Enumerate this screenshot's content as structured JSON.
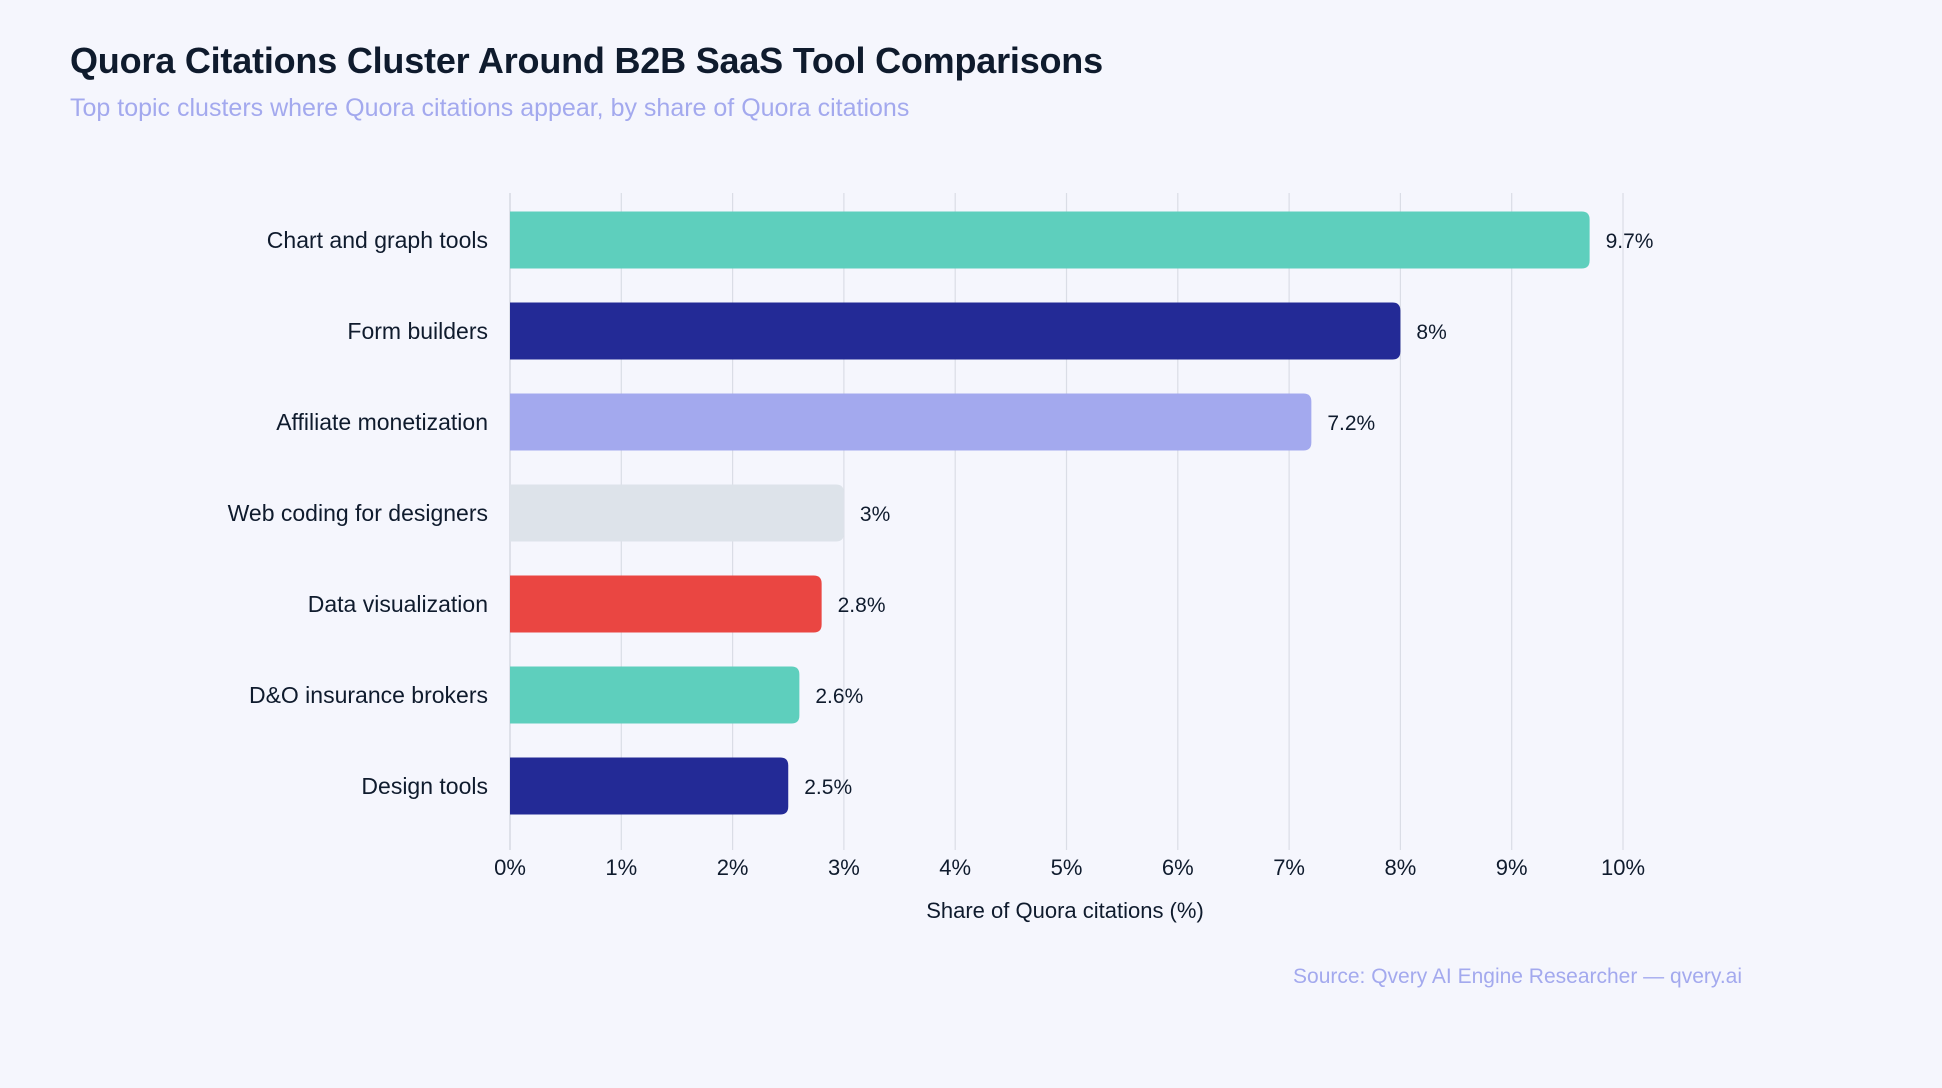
{
  "header": {
    "title": "Quora Citations Cluster Around B2B SaaS Tool Comparisons",
    "subtitle": "Top topic clusters where Quora citations appear, by share of Quora citations"
  },
  "footer": {
    "source": "Source: Qvery AI Engine Researcher — qvery.ai"
  },
  "chart_data": {
    "type": "bar",
    "orientation": "horizontal",
    "categories": [
      "Chart and graph tools",
      "Form builders",
      "Affiliate monetization",
      "Web coding for designers",
      "Data visualization",
      "D&O insurance brokers",
      "Design tools"
    ],
    "values": [
      9.7,
      8,
      7.2,
      3,
      2.8,
      2.6,
      2.5
    ],
    "value_labels": [
      "9.7%",
      "8%",
      "7.2%",
      "3%",
      "2.8%",
      "2.6%",
      "2.5%"
    ],
    "colors": [
      "#5ecfbd",
      "#232a96",
      "#a3a9ee",
      "#dde3ea",
      "#ea4642",
      "#5ecfbd",
      "#232a96"
    ],
    "xlabel": "Share of Quora citations (%)",
    "xlim": [
      0,
      10
    ],
    "xticks": [
      "0%",
      "1%",
      "2%",
      "3%",
      "4%",
      "5%",
      "6%",
      "7%",
      "8%",
      "9%",
      "10%"
    ],
    "grid": true
  }
}
